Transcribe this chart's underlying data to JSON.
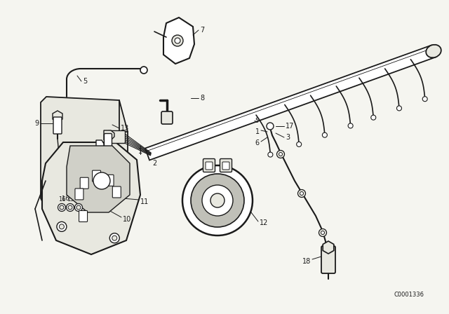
{
  "bg_color": "#f5f5f0",
  "line_color": "#1a1a1a",
  "fill_light": "#e8e8e0",
  "fill_white": "#ffffff",
  "catalog_num": "C0001336",
  "figsize": [
    6.4,
    4.48
  ],
  "dpi": 100
}
